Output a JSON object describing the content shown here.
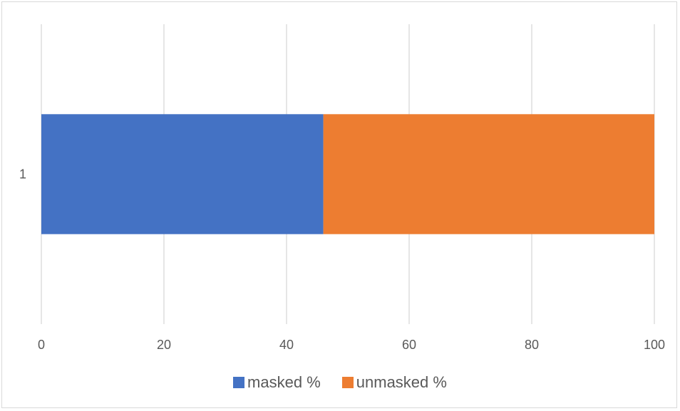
{
  "chart_data": {
    "type": "bar",
    "orientation": "horizontal",
    "stacked": true,
    "categories": [
      "1"
    ],
    "series": [
      {
        "name": "masked %",
        "values": [
          46
        ],
        "color": "#4472C4"
      },
      {
        "name": "unmasked %",
        "values": [
          54
        ],
        "color": "#ED7D31"
      }
    ],
    "xlim": [
      0,
      100
    ],
    "x_ticks": [
      "0",
      "20",
      "40",
      "60",
      "80",
      "100"
    ],
    "grid": true,
    "legend_position": "bottom"
  }
}
